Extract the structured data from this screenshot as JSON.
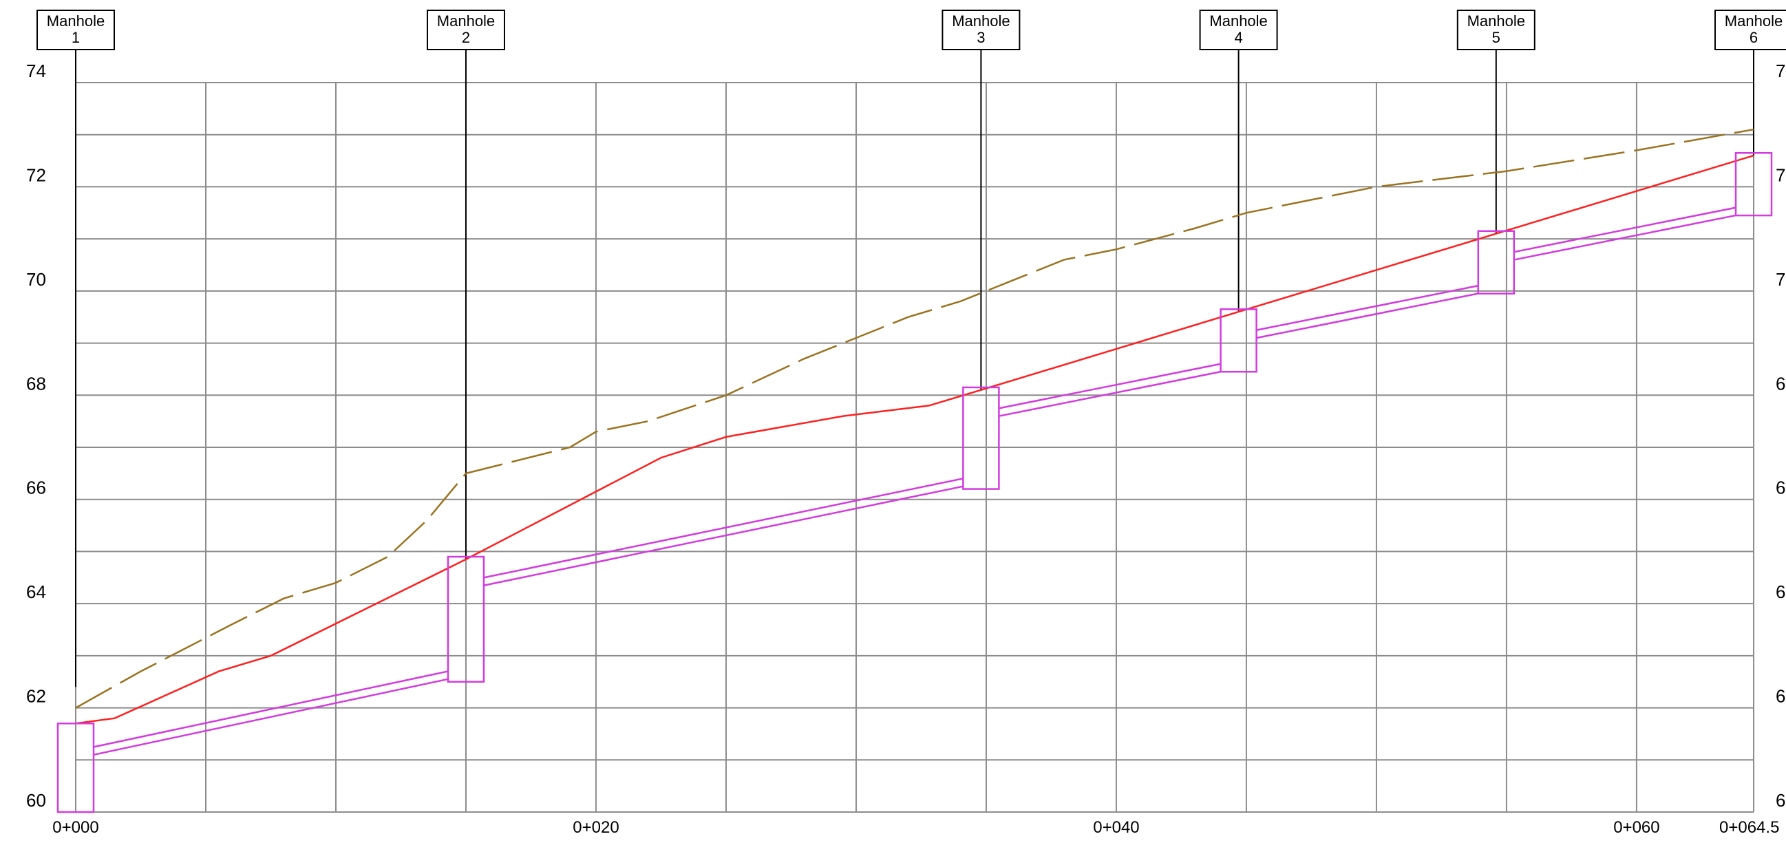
{
  "chart_data": {
    "type": "line",
    "title": "",
    "xlabel": "",
    "ylabel": "",
    "xlim": [
      0,
      64.5
    ],
    "ylim": [
      60,
      74
    ],
    "grid": true,
    "x_ticks": [
      {
        "value": 0,
        "label": "0+000"
      },
      {
        "value": 20,
        "label": "0+020"
      },
      {
        "value": 40,
        "label": "0+040"
      },
      {
        "value": 60,
        "label": "0+060"
      },
      {
        "value": 64.5,
        "label": "0+064.5"
      }
    ],
    "y_ticks_left": [
      {
        "value": 60,
        "label": "60"
      },
      {
        "value": 62,
        "label": "62"
      },
      {
        "value": 64,
        "label": "64"
      },
      {
        "value": 66,
        "label": "66"
      },
      {
        "value": 68,
        "label": "68"
      },
      {
        "value": 70,
        "label": "70"
      },
      {
        "value": 72,
        "label": "72"
      },
      {
        "value": 74,
        "label": "74"
      }
    ],
    "y_ticks_right_visible": [
      "7",
      "7",
      "7",
      "6",
      "6",
      "6",
      "6",
      "6"
    ],
    "manholes": [
      {
        "label_line1": "Manhole",
        "label_line2": "1",
        "station": 0.0,
        "rim": 62.4,
        "invert": 60.0,
        "top": 61.7
      },
      {
        "label_line1": "Manhole",
        "label_line2": "2",
        "station": 15.0,
        "rim": 64.85,
        "invert": 62.5,
        "top": 64.9
      },
      {
        "label_line1": "Manhole",
        "label_line2": "3",
        "station": 34.8,
        "rim": 68.1,
        "invert": 66.2,
        "top": 68.15
      },
      {
        "label_line1": "Manhole",
        "label_line2": "4",
        "station": 44.7,
        "rim": 69.6,
        "invert": 68.45,
        "top": 69.65
      },
      {
        "label_line1": "Manhole",
        "label_line2": "5",
        "station": 54.6,
        "rim": 71.1,
        "invert": 69.95,
        "top": 71.15
      },
      {
        "label_line1": "Manhole",
        "label_line2": "6",
        "station": 64.5,
        "rim": 72.6,
        "invert": 71.45,
        "top": 72.65
      }
    ],
    "series": [
      {
        "key": "existing-ground",
        "color": "#9b7320",
        "dash": true,
        "points": [
          [
            0,
            62.0
          ],
          [
            2.5,
            62.7
          ],
          [
            6,
            63.6
          ],
          [
            8,
            64.1
          ],
          [
            10,
            64.4
          ],
          [
            12,
            64.9
          ],
          [
            13.5,
            65.6
          ],
          [
            14,
            65.9
          ],
          [
            15,
            66.5
          ],
          [
            19,
            67.0
          ],
          [
            20,
            67.3
          ],
          [
            22,
            67.5
          ],
          [
            25,
            68.0
          ],
          [
            28,
            68.7
          ],
          [
            30,
            69.1
          ],
          [
            32,
            69.5
          ],
          [
            34,
            69.8
          ],
          [
            36,
            70.2
          ],
          [
            38,
            70.6
          ],
          [
            40,
            70.8
          ],
          [
            43,
            71.2
          ],
          [
            45,
            71.5
          ],
          [
            47,
            71.7
          ],
          [
            50,
            72.0
          ],
          [
            55,
            72.3
          ],
          [
            60,
            72.7
          ],
          [
            64.5,
            73.1
          ]
        ]
      },
      {
        "key": "finished-grade",
        "color": "#ff2020",
        "dash": false,
        "points": [
          [
            0,
            61.7
          ],
          [
            1.5,
            61.8
          ],
          [
            5.5,
            62.7
          ],
          [
            7.5,
            63.0
          ],
          [
            15,
            64.85
          ],
          [
            22.5,
            66.8
          ],
          [
            25,
            67.2
          ],
          [
            29.5,
            67.6
          ],
          [
            32.8,
            67.8
          ],
          [
            34.8,
            68.1
          ],
          [
            44.7,
            69.6
          ],
          [
            54.6,
            71.1
          ],
          [
            64.5,
            72.6
          ]
        ]
      }
    ],
    "pipes": [
      {
        "from_station": 0.7,
        "to_station": 14.3,
        "crown_start": 61.25,
        "crown_end": 62.7,
        "invert_start": 61.1,
        "invert_end": 62.55
      },
      {
        "from_station": 15.7,
        "to_station": 34.1,
        "crown_start": 64.5,
        "crown_end": 66.4,
        "invert_start": 64.35,
        "invert_end": 66.25
      },
      {
        "from_station": 35.5,
        "to_station": 44.0,
        "crown_start": 67.75,
        "crown_end": 68.6,
        "invert_start": 67.6,
        "invert_end": 68.45
      },
      {
        "from_station": 45.4,
        "to_station": 53.9,
        "crown_start": 69.25,
        "crown_end": 70.1,
        "invert_start": 69.1,
        "invert_end": 69.95
      },
      {
        "from_station": 55.3,
        "to_station": 63.8,
        "crown_start": 70.75,
        "crown_end": 71.6,
        "invert_start": 70.6,
        "invert_end": 71.45
      }
    ],
    "colors": {
      "grid": "#8c8c8c",
      "pipe": "#d33ae0",
      "manhole_box": "#d33ae0",
      "manhole_line": "#000000"
    }
  }
}
